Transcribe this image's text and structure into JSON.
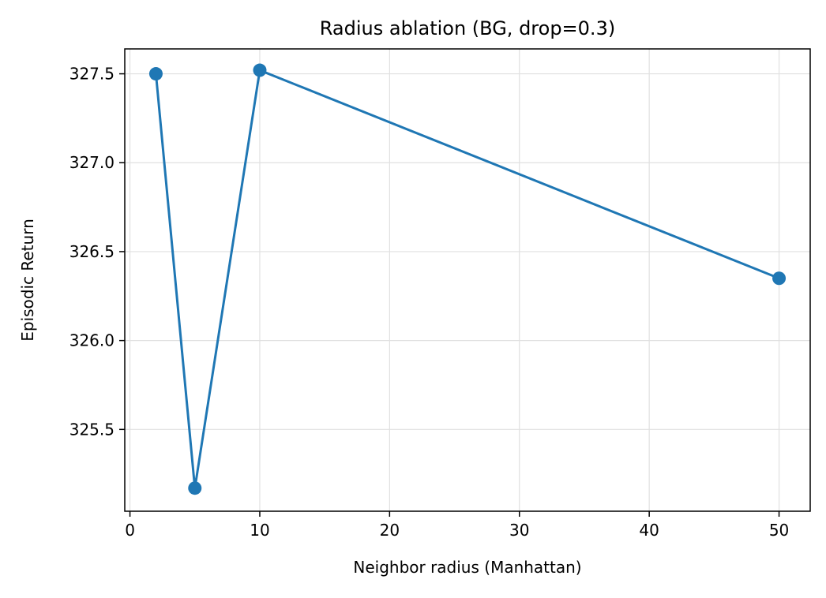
{
  "chart_data": {
    "type": "line",
    "title": "Radius ablation (BG, drop=0.3)",
    "xlabel": "Neighbor radius (Manhattan)",
    "ylabel": "Episodic Return",
    "x": [
      2,
      5,
      10,
      50
    ],
    "series": [
      {
        "values": [
          327.5,
          325.17,
          327.52,
          326.35
        ]
      }
    ],
    "xlim": [
      -0.4,
      52.4
    ],
    "ylim": [
      325.04,
      327.64
    ],
    "xticks": [
      0,
      10,
      20,
      30,
      40,
      50
    ],
    "xtick_labels": [
      "0",
      "10",
      "20",
      "30",
      "40",
      "50"
    ],
    "yticks": [
      325.5,
      326.0,
      326.5,
      327.0,
      327.5
    ],
    "ytick_labels": [
      "325.5",
      "326.0",
      "326.5",
      "327.0",
      "327.5"
    ],
    "grid": true,
    "legend": false,
    "marker": "circle",
    "line_color": "#1f77b4",
    "grid_color": "#e0e0e0",
    "axis_color": "#000000"
  }
}
